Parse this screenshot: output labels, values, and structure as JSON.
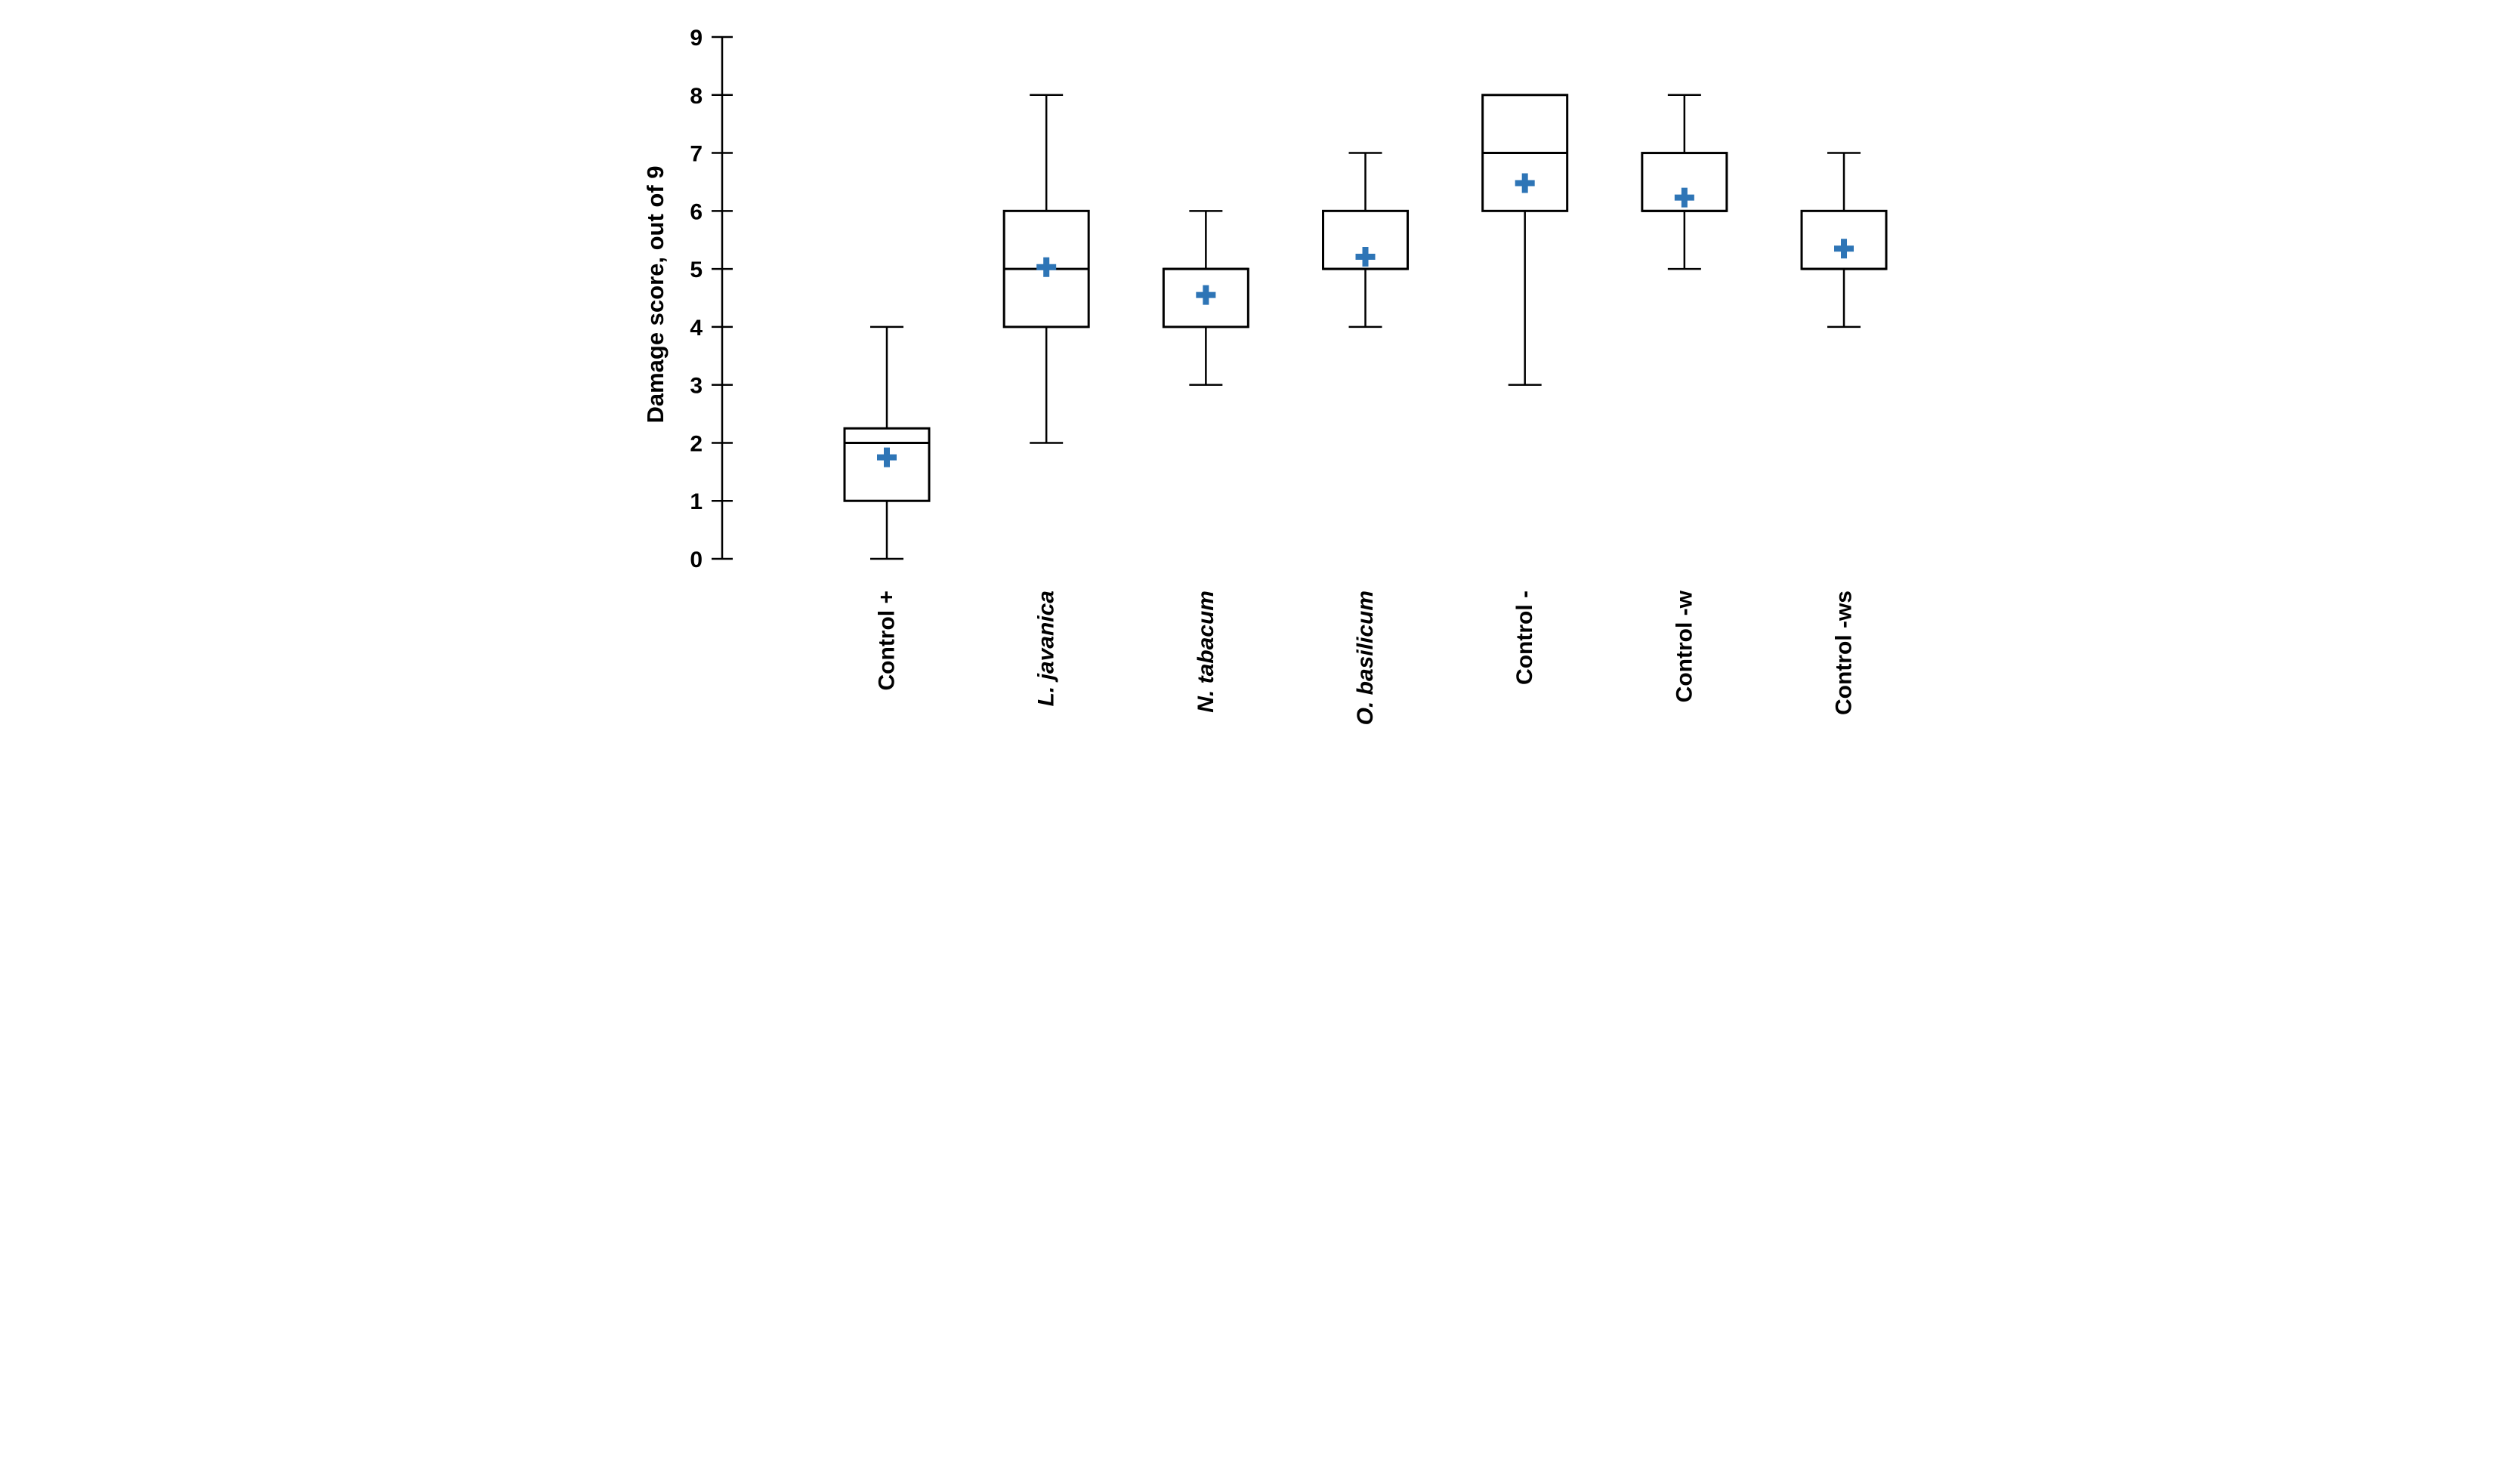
{
  "chart_data": {
    "type": "boxplot",
    "title": "",
    "xlabel": "",
    "ylabel": "Damage score, out of 9",
    "ylim": [
      0,
      9
    ],
    "yticks": [
      0,
      1,
      2,
      3,
      4,
      5,
      6,
      7,
      8,
      9
    ],
    "grid": false,
    "legend": "none",
    "mean_marker_glyph": "+",
    "colors": {
      "box_stroke": "#000000",
      "box_fill": "#ffffff",
      "whisker": "#000000",
      "mean_marker": "#2E75B6"
    },
    "series": [
      {
        "label": "Control +",
        "label_italic": false,
        "min": 0,
        "q1": 1,
        "median": 2,
        "q3": 2.25,
        "max": 4,
        "mean": 1.75
      },
      {
        "label": "L. javanica",
        "label_italic": true,
        "min": 2,
        "q1": 4,
        "median": 5,
        "q3": 6,
        "max": 8,
        "mean": 5.03
      },
      {
        "label": "N. tabacum",
        "label_italic": true,
        "min": 3,
        "q1": 4,
        "median": 5,
        "q3": 5,
        "max": 6,
        "mean": 4.55
      },
      {
        "label": "O. basilicum",
        "label_italic": true,
        "min": 4,
        "q1": 5,
        "median": 5,
        "q3": 6,
        "max": 7,
        "mean": 5.21
      },
      {
        "label": "Control -",
        "label_italic": false,
        "min": 3,
        "q1": 6,
        "median": 7,
        "q3": 8,
        "max": 8,
        "mean": 6.48
      },
      {
        "label": "Control -w",
        "label_italic": false,
        "min": 5,
        "q1": 6,
        "median": 6,
        "q3": 7,
        "max": 8,
        "mean": 6.23
      },
      {
        "label": "Control -ws",
        "label_italic": false,
        "min": 4,
        "q1": 5,
        "median": 5,
        "q3": 6,
        "max": 7,
        "mean": 5.35
      }
    ]
  }
}
